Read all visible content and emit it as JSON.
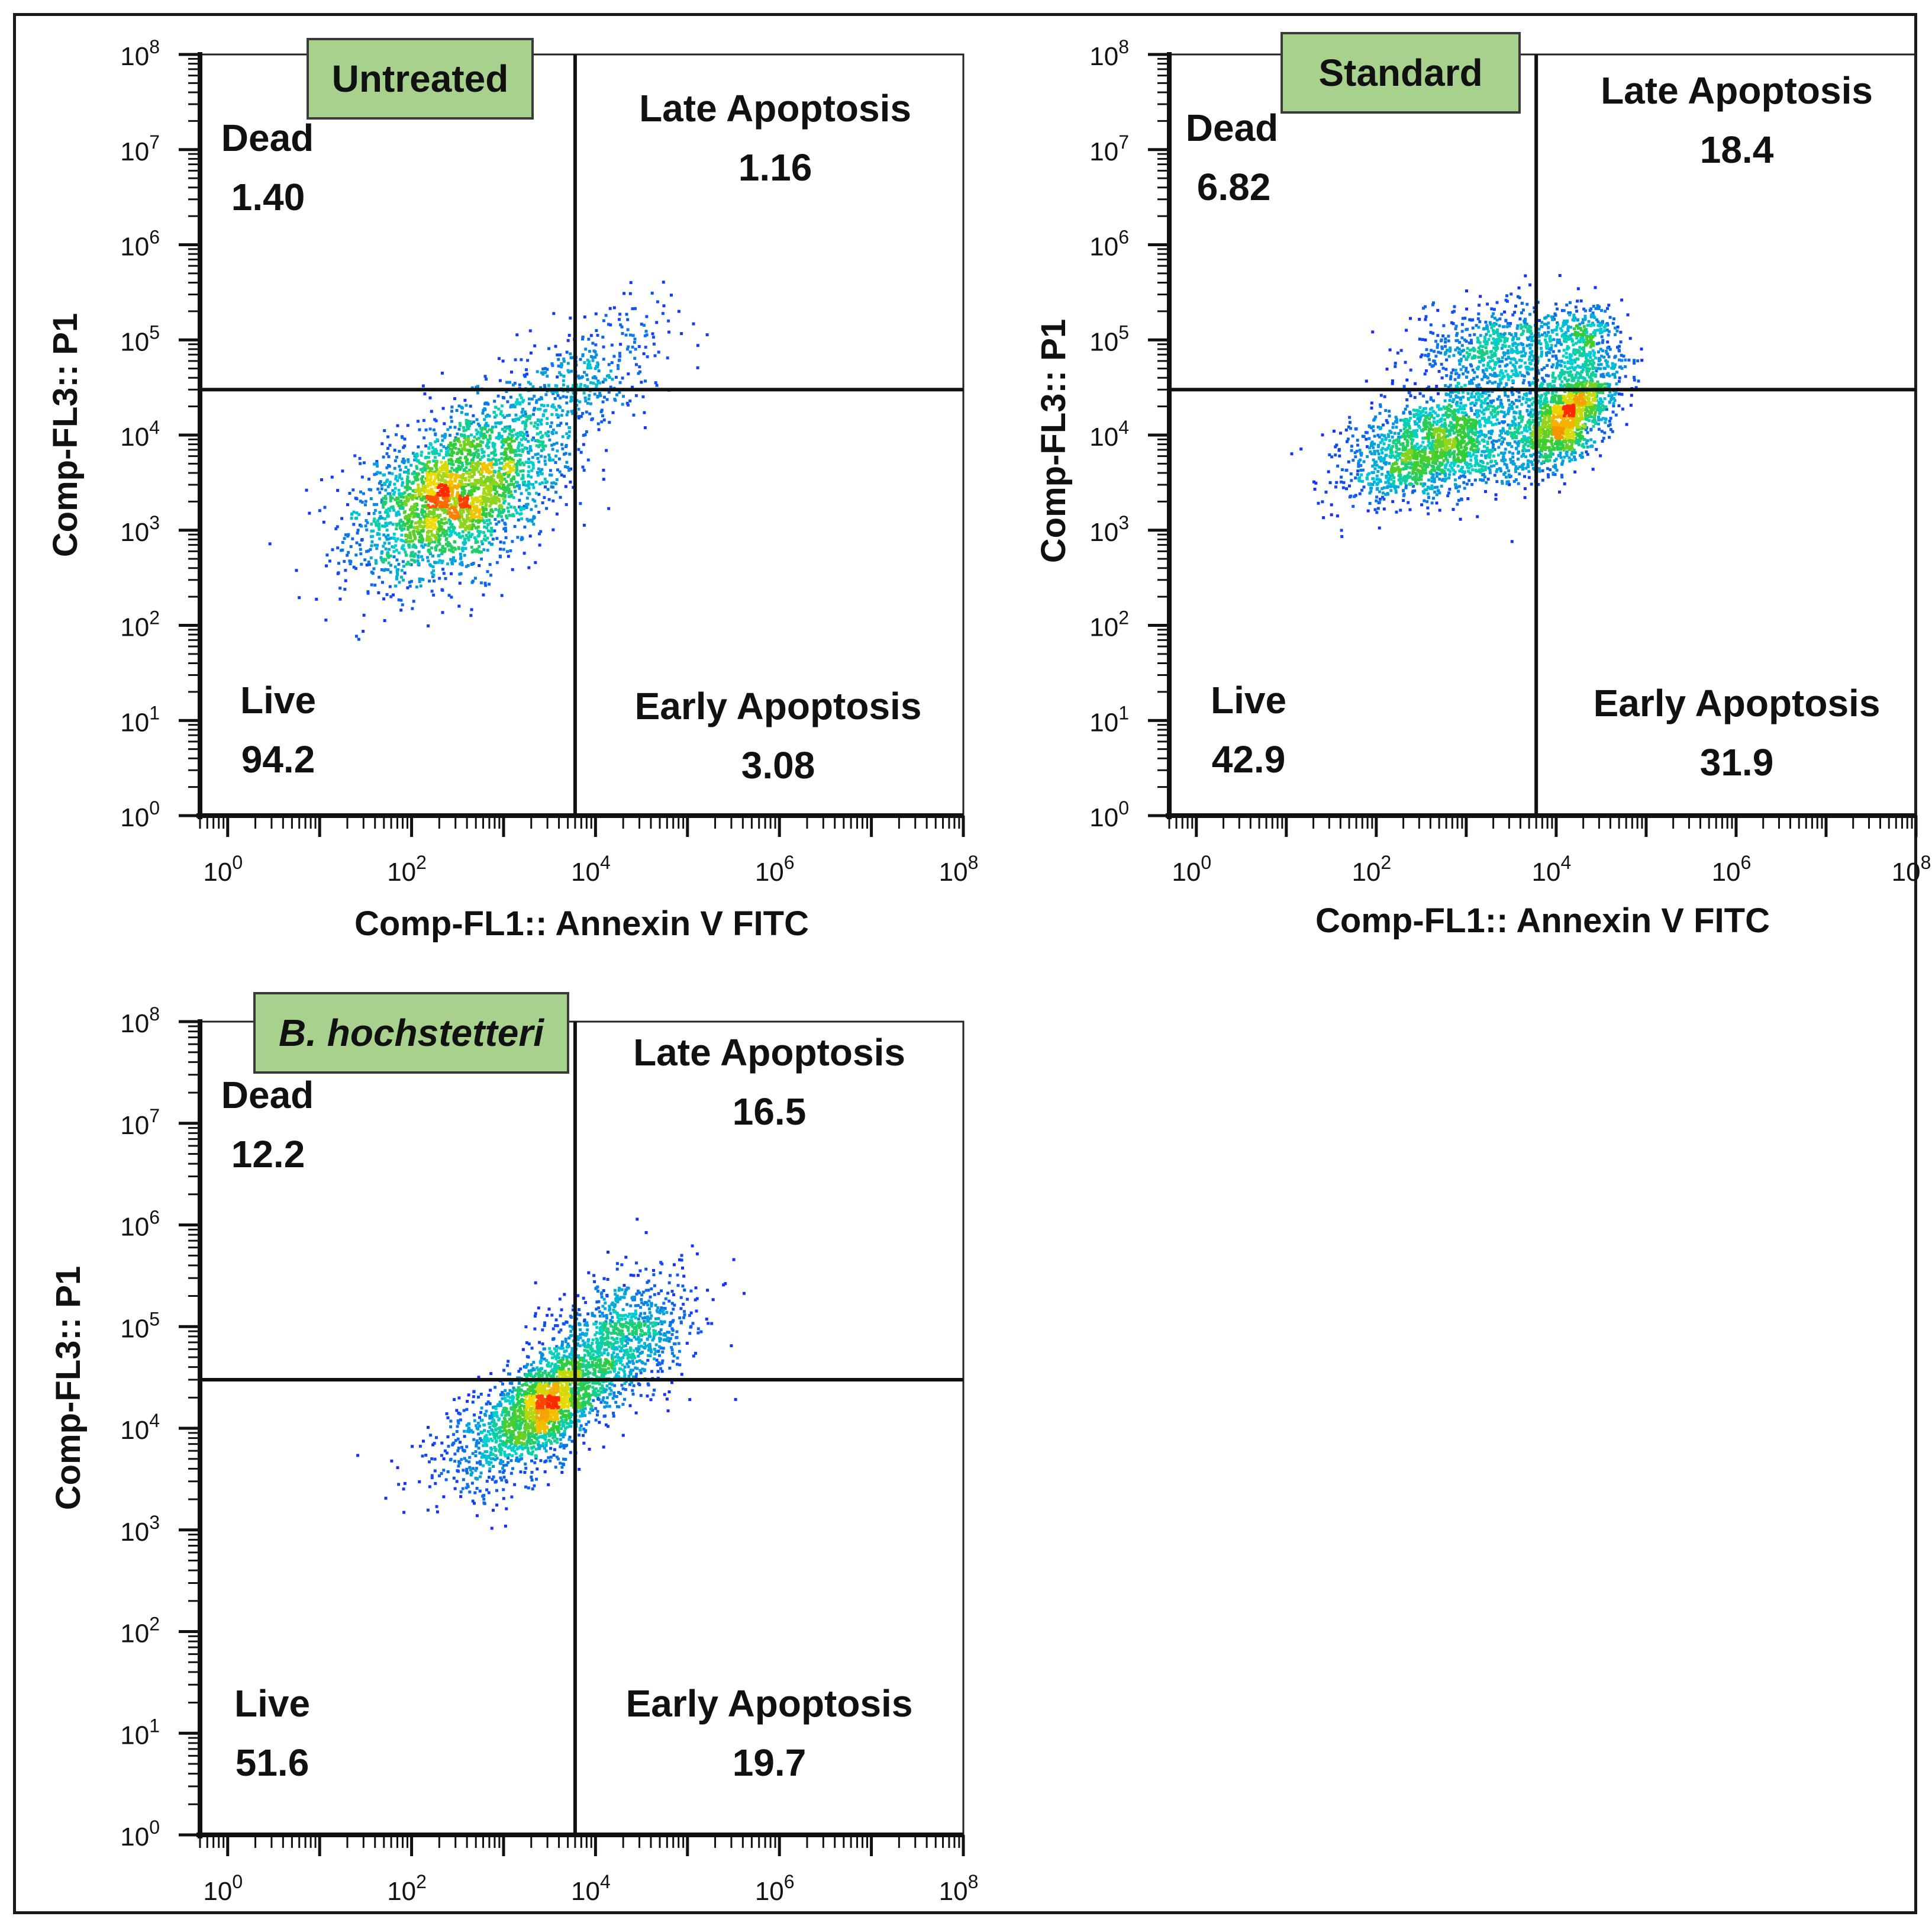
{
  "colors": {
    "frame": "#1a1a1a",
    "title_box_fill": "#a9d18e",
    "title_box_stroke": "#3a3a3a",
    "density_low": "#1a1aff",
    "density_mid": "#00d0d0",
    "density_high": "#33cc33",
    "density_peak": "#ff2a00"
  },
  "chart_data": [
    {
      "type": "scatter",
      "title": "Untreated",
      "title_italic": false,
      "xlabel": "Comp-FL1:: Annexin V FITC",
      "ylabel": "Comp-FL3:: P1",
      "x_scale": "log10",
      "y_scale": "log10",
      "xlim": [
        0.5,
        100000000
      ],
      "ylim": [
        1,
        100000000
      ],
      "x_ticks": [
        "10^0",
        "10^2",
        "10^4",
        "10^6",
        "10^8"
      ],
      "y_ticks": [
        "10^0",
        "10^1",
        "10^2",
        "10^3",
        "10^4",
        "10^5",
        "10^6",
        "10^7",
        "10^8"
      ],
      "gate": {
        "x": 6000,
        "y": 30000
      },
      "quadrants": {
        "dead": {
          "label": "Dead",
          "value": "1.40"
        },
        "late": {
          "label": "Late Apoptosis",
          "value": "1.16"
        },
        "live": {
          "label": "Live",
          "value": "94.2"
        },
        "early": {
          "label": "Early Apoptosis",
          "value": "3.08"
        }
      },
      "populations": [
        {
          "center_log": [
            2.5,
            3.4
          ],
          "spread_log": [
            0.55,
            0.45
          ],
          "count": 2600,
          "rho": 0.45
        },
        {
          "center_log": [
            3.9,
            4.6
          ],
          "spread_log": [
            0.45,
            0.35
          ],
          "count": 380,
          "rho": 0.5
        }
      ]
    },
    {
      "type": "scatter",
      "title": "Standard",
      "title_italic": false,
      "xlabel": "Comp-FL1:: Annexin V FITC",
      "ylabel": "Comp-FL3:: P1",
      "x_scale": "log10",
      "y_scale": "log10",
      "xlim": [
        0.5,
        100000000
      ],
      "ylim": [
        1,
        100000000
      ],
      "x_ticks": [
        "10^0",
        "10^2",
        "10^4",
        "10^6",
        "10^8"
      ],
      "y_ticks": [
        "10^0",
        "10^1",
        "10^2",
        "10^3",
        "10^4",
        "10^5",
        "10^6",
        "10^7",
        "10^8"
      ],
      "gate": {
        "x": 6000,
        "y": 30000
      },
      "quadrants": {
        "dead": {
          "label": "Dead",
          "value": "6.82"
        },
        "late": {
          "label": "Late Apoptosis",
          "value": "18.4"
        },
        "live": {
          "label": "Live",
          "value": "42.9"
        },
        "early": {
          "label": "Early Apoptosis",
          "value": "31.9"
        }
      },
      "populations": [
        {
          "center_log": [
            2.7,
            3.9
          ],
          "spread_log": [
            0.5,
            0.3
          ],
          "count": 1700,
          "rho": 0.4
        },
        {
          "center_log": [
            4.1,
            4.2
          ],
          "spread_log": [
            0.3,
            0.3
          ],
          "count": 1400,
          "rho": 0.55
        },
        {
          "center_log": [
            3.4,
            4.9
          ],
          "spread_log": [
            0.45,
            0.25
          ],
          "count": 700,
          "rho": 0.2
        },
        {
          "center_log": [
            4.3,
            5.0
          ],
          "spread_log": [
            0.18,
            0.18
          ],
          "count": 260,
          "rho": 0.3
        }
      ]
    },
    {
      "type": "scatter",
      "title": "B. hochstetteri",
      "title_italic": true,
      "xlabel": "",
      "ylabel": "Comp-FL3:: P1",
      "x_scale": "log10",
      "y_scale": "log10",
      "xlim": [
        0.5,
        100000000
      ],
      "ylim": [
        1,
        100000000
      ],
      "x_ticks": [
        "10^0",
        "10^2",
        "10^4",
        "10^6",
        "10^8"
      ],
      "y_ticks": [
        "10^0",
        "10^1",
        "10^2",
        "10^3",
        "10^4",
        "10^5",
        "10^6",
        "10^7",
        "10^8"
      ],
      "gate": {
        "x": 6000,
        "y": 30000
      },
      "quadrants": {
        "dead": {
          "label": "Dead",
          "value": "12.2"
        },
        "late": {
          "label": "Late Apoptosis",
          "value": "16.5"
        },
        "live": {
          "label": "Live",
          "value": "51.6"
        },
        "early": {
          "label": "Early Apoptosis",
          "value": "19.7"
        }
      },
      "populations": [
        {
          "center_log": [
            3.5,
            4.25
          ],
          "spread_log": [
            0.3,
            0.25
          ],
          "count": 1200,
          "rho": 0.45
        },
        {
          "center_log": [
            4.2,
            4.8
          ],
          "spread_log": [
            0.45,
            0.35
          ],
          "count": 1100,
          "rho": 0.45
        },
        {
          "center_log": [
            3.0,
            3.9
          ],
          "spread_log": [
            0.4,
            0.3
          ],
          "count": 600,
          "rho": 0.4
        }
      ]
    }
  ]
}
